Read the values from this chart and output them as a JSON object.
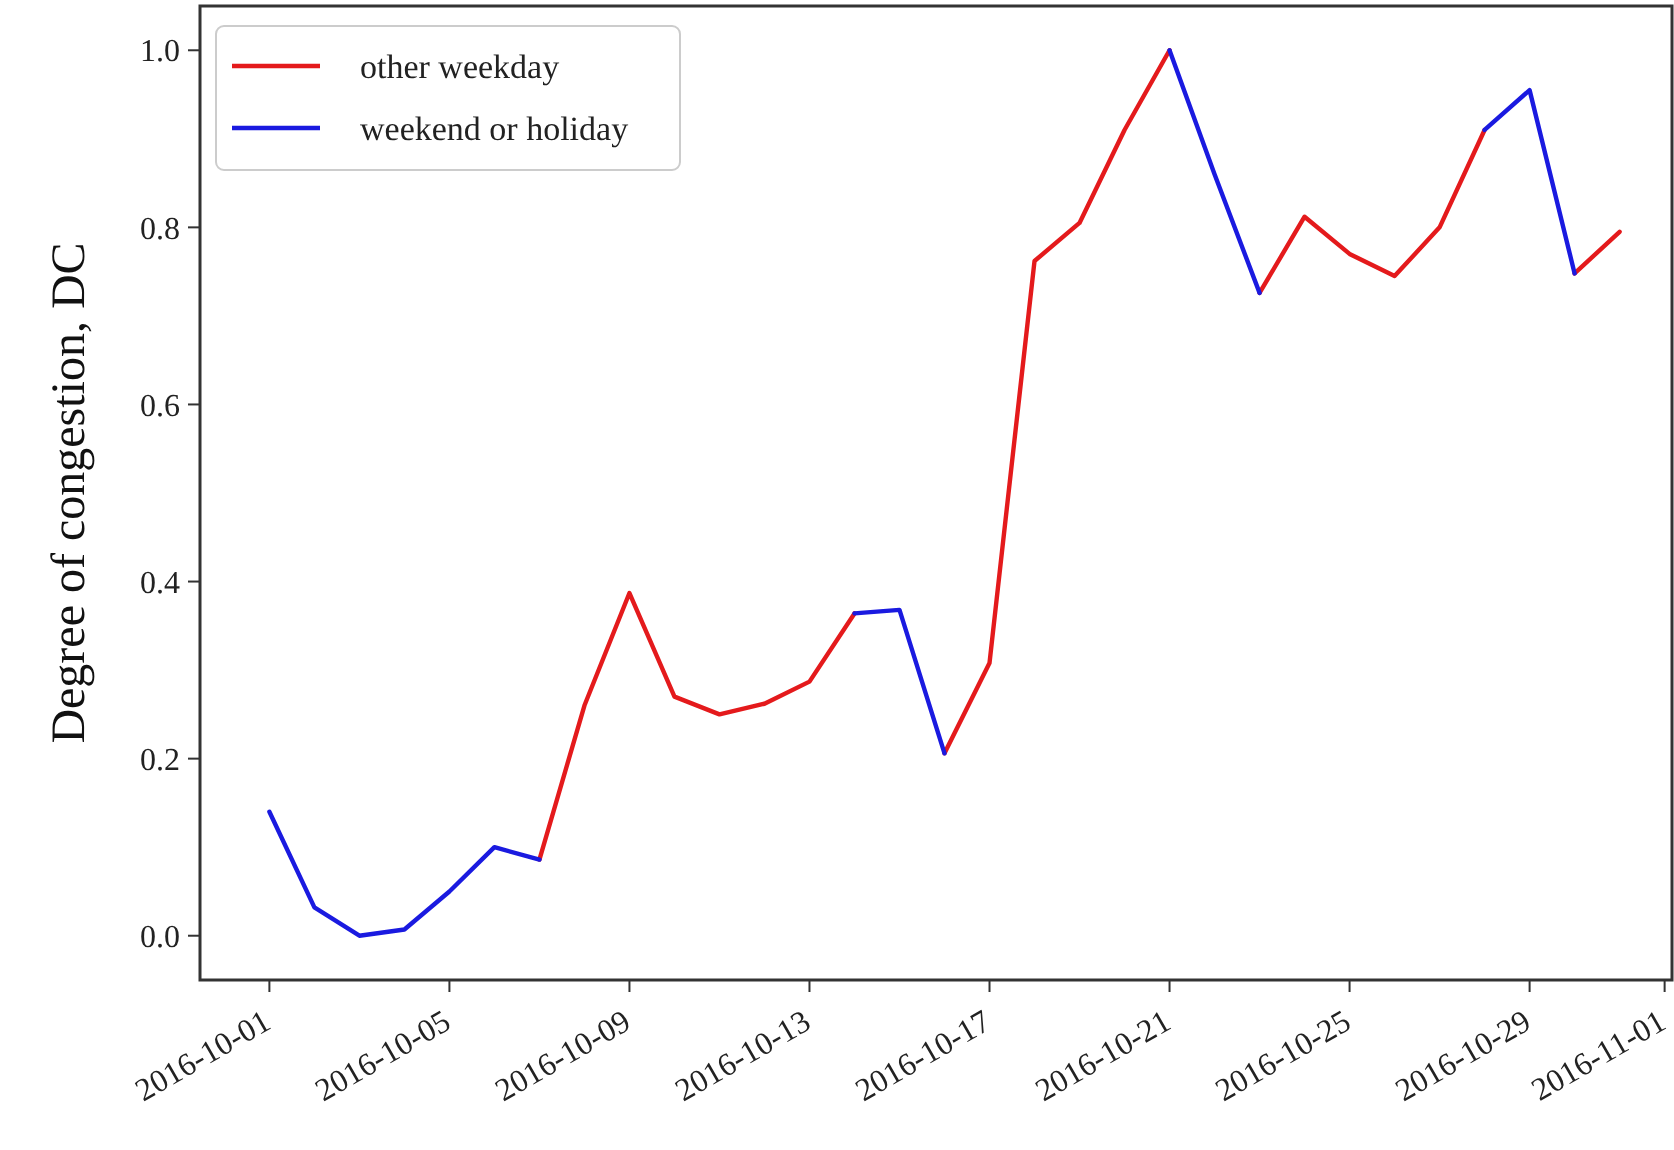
{
  "chart_data": {
    "type": "line",
    "ylabel": "Degree of congestion, DC",
    "x": [
      "2016-10-01",
      "2016-10-02",
      "2016-10-03",
      "2016-10-04",
      "2016-10-05",
      "2016-10-06",
      "2016-10-07",
      "2016-10-08",
      "2016-10-09",
      "2016-10-10",
      "2016-10-11",
      "2016-10-12",
      "2016-10-13",
      "2016-10-14",
      "2016-10-15",
      "2016-10-16",
      "2016-10-17",
      "2016-10-18",
      "2016-10-19",
      "2016-10-20",
      "2016-10-21",
      "2016-10-22",
      "2016-10-23",
      "2016-10-24",
      "2016-10-25",
      "2016-10-26",
      "2016-10-27",
      "2016-10-28",
      "2016-10-29",
      "2016-10-30",
      "2016-10-31"
    ],
    "series": [
      {
        "name": "other weekday",
        "color": "#e41a1c",
        "values": [
          null,
          null,
          null,
          null,
          null,
          null,
          0.086,
          0.26,
          0.387,
          0.27,
          0.25,
          0.262,
          0.287,
          0.364,
          null,
          0.206,
          0.308,
          0.762,
          0.805,
          0.91,
          1.0,
          null,
          0.726,
          0.812,
          0.77,
          0.745,
          0.8,
          0.91,
          null,
          0.748,
          0.795
        ]
      },
      {
        "name": "weekend or holiday",
        "color": "#1a1ae0",
        "values": [
          0.14,
          0.032,
          0.0,
          0.007,
          0.05,
          0.1,
          0.086,
          null,
          null,
          null,
          null,
          null,
          null,
          0.364,
          0.368,
          0.206,
          null,
          null,
          null,
          null,
          1.0,
          0.86,
          0.726,
          null,
          null,
          null,
          null,
          0.91,
          0.955,
          0.748,
          null
        ]
      }
    ],
    "xlim": [
      "2016-09-29T11:00",
      "2016-11-01T05:00"
    ],
    "xticks": [
      {
        "value": "2016-10-01",
        "label": "2016-10-01"
      },
      {
        "value": "2016-10-05",
        "label": "2016-10-05"
      },
      {
        "value": "2016-10-09",
        "label": "2016-10-09"
      },
      {
        "value": "2016-10-13",
        "label": "2016-10-13"
      },
      {
        "value": "2016-10-17",
        "label": "2016-10-17"
      },
      {
        "value": "2016-10-21",
        "label": "2016-10-21"
      },
      {
        "value": "2016-10-25",
        "label": "2016-10-25"
      },
      {
        "value": "2016-10-29",
        "label": "2016-10-29"
      },
      {
        "value": "2016-11-01",
        "label": "2016-11-01"
      }
    ],
    "ylim": [
      -0.05,
      1.05
    ],
    "yticks": [
      {
        "value": 0,
        "label": "0.0"
      },
      {
        "value": 0.2,
        "label": "0.2"
      },
      {
        "value": 0.4,
        "label": "0.4"
      },
      {
        "value": 0.6,
        "label": "0.6"
      },
      {
        "value": 0.8,
        "label": "0.8"
      },
      {
        "value": 1,
        "label": "1.0"
      }
    ],
    "legend": "top left"
  }
}
